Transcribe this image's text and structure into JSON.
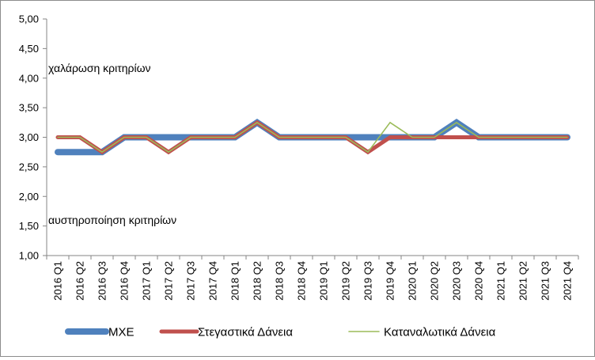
{
  "chart_data": {
    "type": "line",
    "title": "",
    "xlabel": "",
    "ylabel": "",
    "ylim": [
      1.0,
      5.0
    ],
    "yticks": [
      "1,00",
      "1,50",
      "2,00",
      "2,50",
      "3,00",
      "3,50",
      "4,00",
      "4,50",
      "5,00"
    ],
    "grid": false,
    "legend": "bottom",
    "categories": [
      "2016 Q1",
      "2016 Q2",
      "2016 Q3",
      "2016 Q4",
      "2017 Q1",
      "2017 Q2",
      "2017 Q3",
      "2017 Q4",
      "2018 Q1",
      "2018 Q2",
      "2018 Q3",
      "2018 Q4",
      "2019 Q1",
      "2019 Q2",
      "2019 Q3",
      "2019 Q4",
      "2020 Q1",
      "2020 Q2",
      "2020 Q3",
      "2020 Q4",
      "2021 Q1",
      "2021 Q2",
      "2021 Q3",
      "2021 Q4"
    ],
    "series": [
      {
        "name": "ΜΧΕ",
        "color": "#4f81bd",
        "values": [
          2.75,
          2.75,
          2.75,
          3.0,
          3.0,
          3.0,
          3.0,
          3.0,
          3.0,
          3.25,
          3.0,
          3.0,
          3.0,
          3.0,
          3.0,
          3.0,
          3.0,
          3.0,
          3.25,
          3.0,
          3.0,
          3.0,
          3.0,
          3.0
        ]
      },
      {
        "name": "Στεγαστικά Δάνεια",
        "color": "#c0504d",
        "values": [
          3.0,
          3.0,
          2.75,
          3.0,
          3.0,
          2.75,
          3.0,
          3.0,
          3.0,
          3.25,
          3.0,
          3.0,
          3.0,
          3.0,
          2.75,
          3.0,
          3.0,
          3.0,
          3.0,
          3.0,
          3.0,
          3.0,
          3.0,
          3.0
        ]
      },
      {
        "name": "Καταναλωτικά Δάνεια",
        "color": "#9bbb59",
        "values": [
          3.0,
          3.0,
          2.75,
          3.0,
          3.0,
          2.75,
          3.0,
          3.0,
          3.0,
          3.25,
          3.0,
          3.0,
          3.0,
          3.0,
          2.75,
          3.25,
          3.0,
          3.0,
          3.25,
          3.0,
          3.0,
          3.0,
          3.0,
          3.0
        ]
      }
    ],
    "annotations": {
      "upper": "χαλάρωση κριτηρίων",
      "lower": "αυστηροποίηση κριτηρίων"
    }
  }
}
